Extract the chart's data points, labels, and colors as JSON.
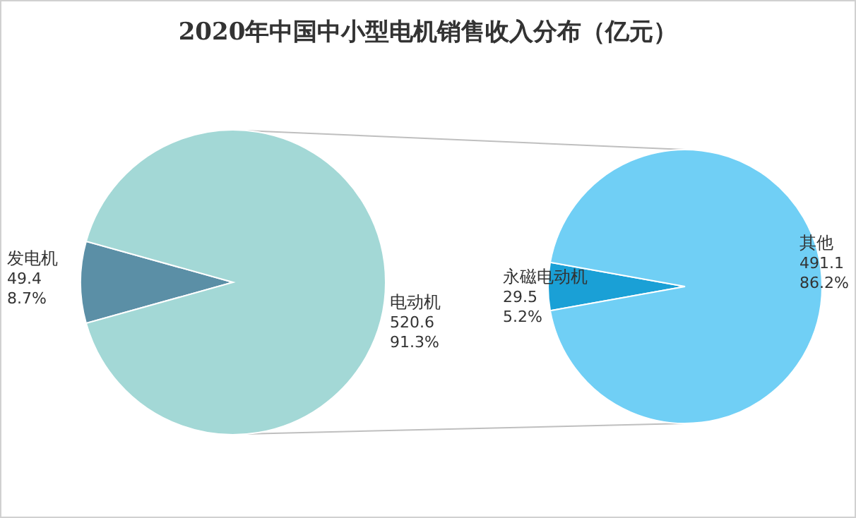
{
  "chart_data": [
    {
      "type": "pie",
      "title": "2020年中国中小型电机销售收入分布（亿元）",
      "categories": [
        "发电机",
        "电动机"
      ],
      "values": [
        49.4,
        520.6
      ],
      "colors": [
        "#5b8fa6",
        "#a3d8d6"
      ],
      "value_labels": [
        "49.4\n8.7%",
        "520.6\n91.3%"
      ]
    },
    {
      "type": "pie",
      "categories": [
        "永磁电动机",
        "其他"
      ],
      "values": [
        29.5,
        491.1
      ],
      "colors": [
        "#1aa0d6",
        "#70cff5"
      ],
      "value_labels": [
        "29.5\n5.2%",
        "491.1\n86.2%"
      ]
    }
  ]
}
